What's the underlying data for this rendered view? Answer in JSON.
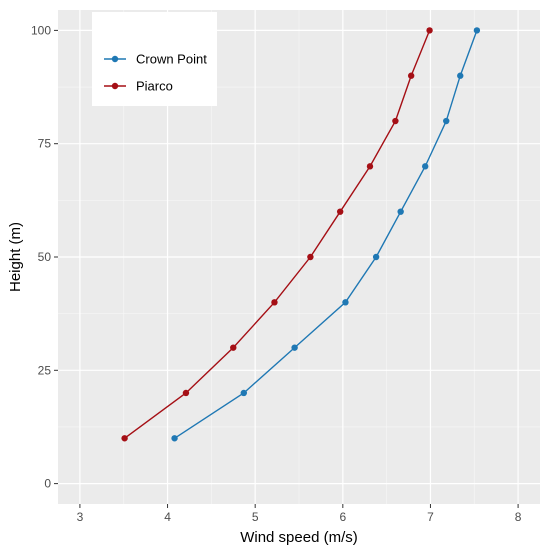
{
  "chart_data": {
    "type": "line",
    "title": "",
    "xlabel": "Wind speed (m/s)",
    "ylabel": "Height (m)",
    "xlim": [
      2.75,
      8.25
    ],
    "ylim": [
      -4.5,
      104.5
    ],
    "x_ticks": [
      3,
      4,
      5,
      6,
      7,
      8
    ],
    "y_ticks": [
      0,
      25,
      50,
      75,
      100
    ],
    "grid": true,
    "legend_position": "top-left",
    "series": [
      {
        "name": "Crown Point",
        "color": "#1f78b4",
        "points": [
          {
            "x": 4.08,
            "y": 10
          },
          {
            "x": 4.87,
            "y": 20
          },
          {
            "x": 5.45,
            "y": 30
          },
          {
            "x": 6.03,
            "y": 40
          },
          {
            "x": 6.38,
            "y": 50
          },
          {
            "x": 6.66,
            "y": 60
          },
          {
            "x": 6.94,
            "y": 70
          },
          {
            "x": 7.18,
            "y": 80
          },
          {
            "x": 7.34,
            "y": 90
          },
          {
            "x": 7.53,
            "y": 100
          }
        ]
      },
      {
        "name": "Piarco",
        "color": "#a50f15",
        "points": [
          {
            "x": 3.51,
            "y": 10
          },
          {
            "x": 4.21,
            "y": 20
          },
          {
            "x": 4.75,
            "y": 30
          },
          {
            "x": 5.22,
            "y": 40
          },
          {
            "x": 5.63,
            "y": 50
          },
          {
            "x": 5.97,
            "y": 60
          },
          {
            "x": 6.31,
            "y": 70
          },
          {
            "x": 6.6,
            "y": 80
          },
          {
            "x": 6.78,
            "y": 90
          },
          {
            "x": 6.99,
            "y": 100
          }
        ]
      }
    ]
  }
}
